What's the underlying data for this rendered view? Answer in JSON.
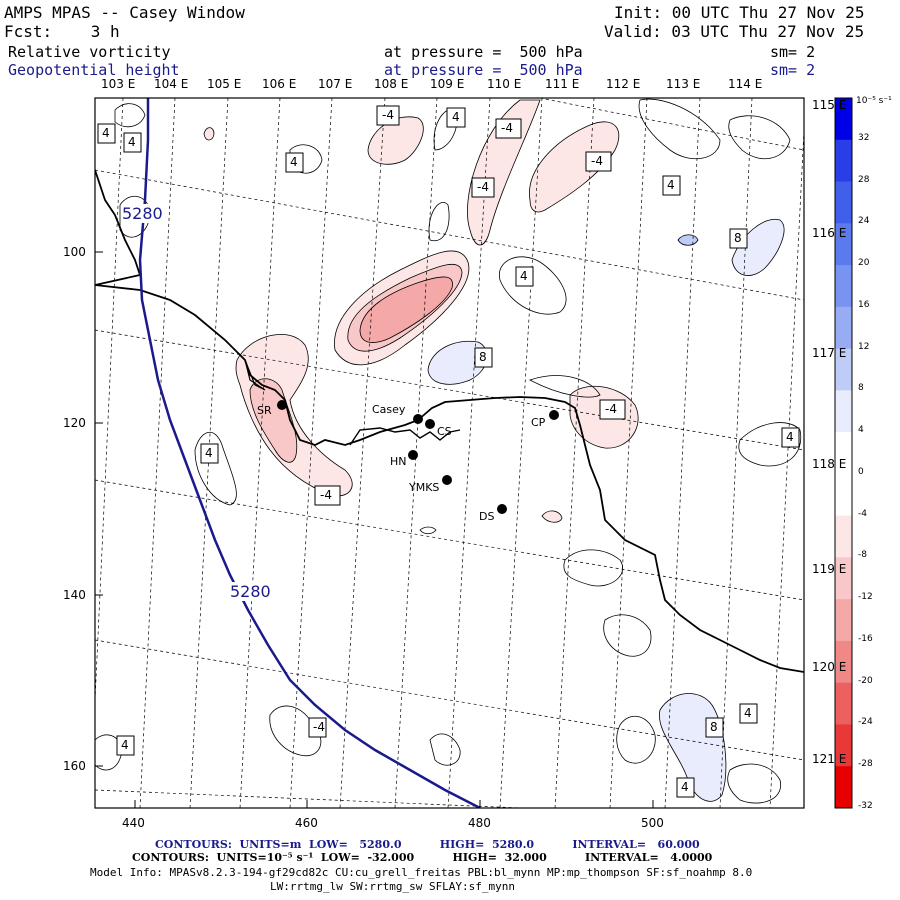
{
  "header": {
    "model": "AMPS MPAS -- Casey Window",
    "init": "Init: 00 UTC Thu 27 Nov 25",
    "fcst": "Fcst:    3 h",
    "valid": "Valid: 03 UTC Thu 27 Nov 25",
    "field1": "Relative vorticity",
    "field1_level": "at pressure =  500 hPa",
    "field1_sm": "sm= 2",
    "field2": "Geopotential height",
    "field2_level": "at pressure =  500 hPa",
    "field2_sm": "sm= 2"
  },
  "top_lon_labels": [
    "103 E",
    "104 E",
    "105 E",
    "106 E",
    "107 E",
    "108 E",
    "109 E",
    "110 E",
    "111 E",
    "112 E",
    "113 E",
    "114 E"
  ],
  "right_lon_labels": [
    "115 E",
    "116 E",
    "117 E",
    "118 E",
    "119 E",
    "120 E",
    "121 E"
  ],
  "x_ticks": [
    "440",
    "460",
    "480",
    "500"
  ],
  "y_ticks": [
    "100",
    "120",
    "140",
    "160"
  ],
  "stations": [
    "SR",
    "Casey",
    "CS",
    "HN",
    "YMKS",
    "CP",
    "DS"
  ],
  "height_labels": [
    "5280",
    "5280"
  ],
  "vort_labels": {
    "pos4": "4",
    "pos8": "8",
    "neg4": "-4"
  },
  "colorbar": {
    "unit": "10⁻⁵ s⁻¹",
    "ticks": [
      "32",
      "28",
      "24",
      "20",
      "16",
      "12",
      "8",
      "4",
      "0",
      "-4",
      "-8",
      "-12",
      "-16",
      "-20",
      "-24",
      "-28",
      "-32"
    ],
    "colors": [
      "#0000e6",
      "#2a3ee8",
      "#4060ec",
      "#5a7aee",
      "#7894f0",
      "#98acf4",
      "#c0ccf8",
      "#e8ecfc",
      "#ffffff",
      "#ffffff",
      "#fce6e6",
      "#f8c8c8",
      "#f4a8a8",
      "#f08888",
      "#ec6060",
      "#e83838",
      "#e60000"
    ]
  },
  "footer": {
    "line1": "CONTOURS:  UNITS=m  LOW=   5280.0          HIGH=  5280.0          INTERVAL=   60.000",
    "line2": "CONTOURS:  UNITS=10⁻⁵ s⁻¹  LOW=  -32.000          HIGH=  32.000          INTERVAL=   4.0000",
    "line3": "Model Info: MPASv8.2.3-194-gf29cd82c CU:cu_grell_freitas PBL:bl_mynn MP:mp_thompson SF:sf_noahmp 8.0",
    "line4": "LW:rrtmg_lw SW:rrtmg_sw SFLAY:sf_mynn"
  }
}
